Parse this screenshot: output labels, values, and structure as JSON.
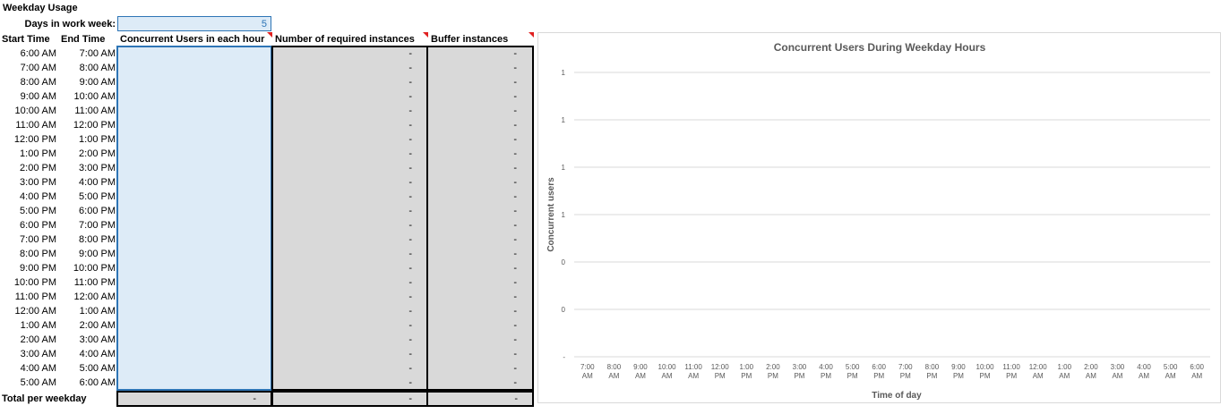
{
  "sheet": {
    "title": "Weekday Usage",
    "days_label": "Days in work week:",
    "days_value": "5",
    "headers": {
      "start": "Start Time",
      "end": "End Time",
      "concurrent": "Concurrent Users in each hour",
      "required": "Number of required instances",
      "buffer": "Buffer instances"
    },
    "rows": [
      {
        "start": "6:00 AM",
        "end": "7:00 AM",
        "required": "-",
        "buffer": "-"
      },
      {
        "start": "7:00 AM",
        "end": "8:00 AM",
        "required": "-",
        "buffer": "-"
      },
      {
        "start": "8:00 AM",
        "end": "9:00 AM",
        "required": "-",
        "buffer": "-"
      },
      {
        "start": "9:00 AM",
        "end": "10:00 AM",
        "required": "-",
        "buffer": "-"
      },
      {
        "start": "10:00 AM",
        "end": "11:00 AM",
        "required": "-",
        "buffer": "-"
      },
      {
        "start": "11:00 AM",
        "end": "12:00 PM",
        "required": "-",
        "buffer": "-"
      },
      {
        "start": "12:00 PM",
        "end": "1:00 PM",
        "required": "-",
        "buffer": "-"
      },
      {
        "start": "1:00 PM",
        "end": "2:00 PM",
        "required": "-",
        "buffer": "-"
      },
      {
        "start": "2:00 PM",
        "end": "3:00 PM",
        "required": "-",
        "buffer": "-"
      },
      {
        "start": "3:00 PM",
        "end": "4:00 PM",
        "required": "-",
        "buffer": "-"
      },
      {
        "start": "4:00 PM",
        "end": "5:00 PM",
        "required": "-",
        "buffer": "-"
      },
      {
        "start": "5:00 PM",
        "end": "6:00 PM",
        "required": "-",
        "buffer": "-"
      },
      {
        "start": "6:00 PM",
        "end": "7:00 PM",
        "required": "-",
        "buffer": "-"
      },
      {
        "start": "7:00 PM",
        "end": "8:00 PM",
        "required": "-",
        "buffer": "-"
      },
      {
        "start": "8:00 PM",
        "end": "9:00 PM",
        "required": "-",
        "buffer": "-"
      },
      {
        "start": "9:00 PM",
        "end": "10:00 PM",
        "required": "-",
        "buffer": "-"
      },
      {
        "start": "10:00 PM",
        "end": "11:00 PM",
        "required": "-",
        "buffer": "-"
      },
      {
        "start": "11:00 PM",
        "end": "12:00 AM",
        "required": "-",
        "buffer": "-"
      },
      {
        "start": "12:00 AM",
        "end": "1:00 AM",
        "required": "-",
        "buffer": "-"
      },
      {
        "start": "1:00 AM",
        "end": "2:00 AM",
        "required": "-",
        "buffer": "-"
      },
      {
        "start": "2:00 AM",
        "end": "3:00 AM",
        "required": "-",
        "buffer": "-"
      },
      {
        "start": "3:00 AM",
        "end": "4:00 AM",
        "required": "-",
        "buffer": "-"
      },
      {
        "start": "4:00 AM",
        "end": "5:00 AM",
        "required": "-",
        "buffer": "-"
      },
      {
        "start": "5:00 AM",
        "end": "6:00 AM",
        "required": "-",
        "buffer": "-"
      }
    ],
    "total": {
      "label": "Total per weekday",
      "concurrent": "-",
      "required": "-",
      "buffer": "-"
    }
  },
  "colors": {
    "input_fill": "#ddebf7",
    "calc_fill": "#d9d9d9",
    "comment_marker": "#e02020",
    "input_border": "#2e75b6"
  },
  "chart_data": {
    "type": "line",
    "title": "Concurrent Users During Weekday Hours",
    "xlabel": "Time of day",
    "ylabel": "Concurrent users",
    "y_tick_labels": [
      "-",
      "0",
      "0",
      "1",
      "1",
      "1",
      "1"
    ],
    "categories": [
      [
        "7:00",
        "AM"
      ],
      [
        "8:00",
        "AM"
      ],
      [
        "9:00",
        "AM"
      ],
      [
        "10:00",
        "AM"
      ],
      [
        "11:00",
        "AM"
      ],
      [
        "12:00",
        "PM"
      ],
      [
        "1:00",
        "PM"
      ],
      [
        "2:00",
        "PM"
      ],
      [
        "3:00",
        "PM"
      ],
      [
        "4:00",
        "PM"
      ],
      [
        "5:00",
        "PM"
      ],
      [
        "6:00",
        "PM"
      ],
      [
        "7:00",
        "PM"
      ],
      [
        "8:00",
        "PM"
      ],
      [
        "9:00",
        "PM"
      ],
      [
        "10:00",
        "PM"
      ],
      [
        "11:00",
        "PM"
      ],
      [
        "12:00",
        "AM"
      ],
      [
        "1:00",
        "AM"
      ],
      [
        "2:00",
        "AM"
      ],
      [
        "3:00",
        "AM"
      ],
      [
        "4:00",
        "AM"
      ],
      [
        "5:00",
        "AM"
      ],
      [
        "6:00",
        "AM"
      ]
    ],
    "series": [],
    "grid": true
  }
}
